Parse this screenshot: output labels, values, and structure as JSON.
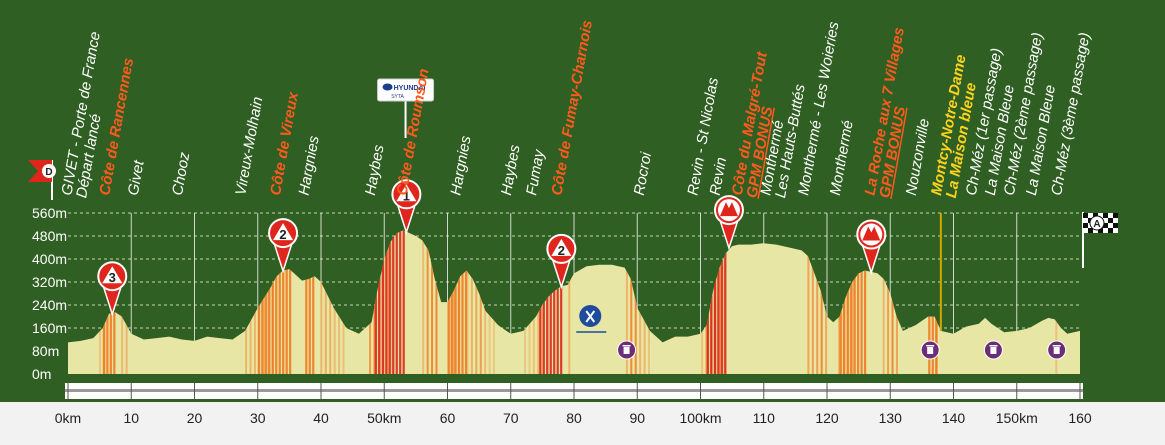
{
  "chart_data": {
    "type": "area",
    "title": "",
    "xlabel": "",
    "ylabel": "",
    "xlim": [
      0,
      160
    ],
    "ylim": [
      0,
      560
    ],
    "grid": true,
    "colors": {
      "background": "#2f5f22",
      "profile_fill": "#e8e6a4",
      "steep_stripe": "#f07a22",
      "very_steep_stripe": "#d9281e",
      "label_town": "#ffffff",
      "label_climb": "#ff5a1e",
      "label_sprint": "#ffd21e",
      "axis_band": "#ffffff"
    },
    "y_ticks": [
      {
        "value": 0,
        "label": "0m"
      },
      {
        "value": 80,
        "label": "80m"
      },
      {
        "value": 160,
        "label": "160m"
      },
      {
        "value": 240,
        "label": "240m"
      },
      {
        "value": 320,
        "label": "320m"
      },
      {
        "value": 400,
        "label": "400m"
      },
      {
        "value": 480,
        "label": "480m"
      },
      {
        "value": 560,
        "label": "560m"
      }
    ],
    "x_ticks": [
      {
        "value": 0,
        "label": "0km"
      },
      {
        "value": 10,
        "label": "10"
      },
      {
        "value": 20,
        "label": "20"
      },
      {
        "value": 30,
        "label": "30"
      },
      {
        "value": 40,
        "label": "40"
      },
      {
        "value": 50,
        "label": "50km"
      },
      {
        "value": 60,
        "label": "60"
      },
      {
        "value": 70,
        "label": "70"
      },
      {
        "value": 80,
        "label": "80"
      },
      {
        "value": 90,
        "label": "90"
      },
      {
        "value": 100,
        "label": "100km"
      },
      {
        "value": 110,
        "label": "110"
      },
      {
        "value": 120,
        "label": "120"
      },
      {
        "value": 130,
        "label": "130"
      },
      {
        "value": 140,
        "label": "140"
      },
      {
        "value": 150,
        "label": "150km"
      },
      {
        "value": 160,
        "label": "160"
      }
    ],
    "series": [
      {
        "x": [
          0,
          2,
          4,
          5.5,
          6.5,
          7.5,
          8.5,
          10,
          12,
          14,
          16,
          18,
          20,
          22,
          24,
          26,
          28,
          30,
          32,
          33,
          34,
          35,
          36,
          37,
          38,
          39,
          40,
          42,
          44,
          46,
          48,
          49,
          50,
          51,
          52,
          53,
          54,
          55,
          56,
          57,
          58,
          59,
          60,
          61,
          62,
          63,
          64,
          65,
          66,
          68,
          70,
          72,
          74,
          75,
          76,
          77,
          78,
          79,
          80,
          82,
          84,
          86,
          88,
          89,
          90,
          91,
          92,
          94,
          96,
          98,
          100,
          101,
          102,
          103,
          104,
          105,
          106,
          108,
          110,
          112,
          114,
          116,
          117,
          118,
          119,
          120,
          121,
          122,
          123,
          124,
          125,
          126,
          127,
          128,
          129,
          130,
          131,
          132,
          134,
          136,
          137,
          138,
          140,
          142,
          144,
          145,
          146,
          147,
          148,
          150,
          152,
          154,
          155,
          156,
          157,
          158,
          160
        ],
        "y": [
          110,
          115,
          125,
          160,
          210,
          215,
          200,
          140,
          120,
          125,
          130,
          120,
          115,
          130,
          125,
          120,
          150,
          230,
          300,
          340,
          360,
          365,
          345,
          325,
          330,
          340,
          320,
          230,
          160,
          140,
          180,
          300,
          400,
          460,
          490,
          500,
          490,
          480,
          465,
          430,
          330,
          250,
          250,
          290,
          340,
          360,
          330,
          280,
          220,
          170,
          140,
          150,
          200,
          240,
          270,
          290,
          305,
          310,
          350,
          375,
          380,
          380,
          370,
          330,
          230,
          190,
          150,
          110,
          130,
          130,
          140,
          170,
          290,
          370,
          420,
          445,
          450,
          450,
          455,
          450,
          440,
          430,
          410,
          350,
          290,
          200,
          180,
          200,
          270,
          320,
          350,
          360,
          355,
          350,
          330,
          280,
          200,
          150,
          170,
          200,
          200,
          150,
          140,
          165,
          175,
          195,
          175,
          160,
          145,
          150,
          160,
          185,
          195,
          190,
          160,
          140,
          150
        ]
      }
    ],
    "steep_sections": [
      {
        "from": 5.5,
        "to": 7.5,
        "grade": "steep"
      },
      {
        "from": 30,
        "to": 35,
        "grade": "steep"
      },
      {
        "from": 37.5,
        "to": 39,
        "grade": "steep"
      },
      {
        "from": 48.5,
        "to": 53,
        "grade": "very_steep"
      },
      {
        "from": 60,
        "to": 63,
        "grade": "steep"
      },
      {
        "from": 74.5,
        "to": 78,
        "grade": "very_steep"
      },
      {
        "from": 101,
        "to": 104,
        "grade": "very_steep"
      },
      {
        "from": 122,
        "to": 126,
        "grade": "steep"
      },
      {
        "from": 136,
        "to": 137.5,
        "grade": "steep"
      }
    ],
    "locations": [
      {
        "km": 0.5,
        "lines": [
          "GIVET - Porte de France",
          "Départ lancé"
        ],
        "style": "town"
      },
      {
        "km": 6.5,
        "lines": [
          "Côte de Rancennes"
        ],
        "style": "climb"
      },
      {
        "km": 11,
        "lines": [
          "Givet"
        ],
        "style": "town"
      },
      {
        "km": 18,
        "lines": [
          "Chooz"
        ],
        "style": "town"
      },
      {
        "km": 28,
        "lines": [
          "Vireux-Molhain"
        ],
        "style": "town"
      },
      {
        "km": 33.5,
        "lines": [
          "Côte de Vireux"
        ],
        "style": "climb"
      },
      {
        "km": 38,
        "lines": [
          "Hargnies"
        ],
        "style": "town"
      },
      {
        "km": 48.5,
        "lines": [
          "Haybes"
        ],
        "style": "town"
      },
      {
        "km": 53.5,
        "lines": [
          "Côte de Roumson"
        ],
        "style": "climb"
      },
      {
        "km": 62,
        "lines": [
          "Hargnies"
        ],
        "style": "town"
      },
      {
        "km": 70,
        "lines": [
          "Haybes"
        ],
        "style": "town"
      },
      {
        "km": 74,
        "lines": [
          "Fumay"
        ],
        "style": "town"
      },
      {
        "km": 78,
        "lines": [
          "Côte de Fumay-Charnois"
        ],
        "style": "climb"
      },
      {
        "km": 91,
        "lines": [
          "Rocroi"
        ],
        "style": "town"
      },
      {
        "km": 99.5,
        "lines": [
          "Revin - St Nicolas"
        ],
        "style": "town"
      },
      {
        "km": 103,
        "lines": [
          "Revin"
        ],
        "style": "town"
      },
      {
        "km": 106.5,
        "lines": [
          "Côte du Malgré-Tout",
          "GPM BONUS"
        ],
        "style": "climb"
      },
      {
        "km": 111,
        "lines": [
          "Monthermé",
          "Les Hauts-Buttés"
        ],
        "style": "town"
      },
      {
        "km": 117,
        "lines": [
          "Monthermé - Les Woieries"
        ],
        "style": "town"
      },
      {
        "km": 122,
        "lines": [
          "Monthermé"
        ],
        "style": "town"
      },
      {
        "km": 127.5,
        "lines": [
          "La Roche aux 7 Villages",
          "GPM BONUS"
        ],
        "style": "climb"
      },
      {
        "km": 134,
        "lines": [
          "Nouzonville"
        ],
        "style": "town"
      },
      {
        "km": 138,
        "lines": [
          "Montcy-Notre-Dame",
          "La Maison bleue"
        ],
        "style": "sprint"
      },
      {
        "km": 143.5,
        "lines": [
          "Ch-Méz (1er passage)"
        ],
        "style": "town"
      },
      {
        "km": 146.5,
        "lines": [
          "La Maison Bleue"
        ],
        "style": "town"
      },
      {
        "km": 149.5,
        "lines": [
          "Ch-Méz (2ème passage)"
        ],
        "style": "town"
      },
      {
        "km": 153,
        "lines": [
          "La Maison Bleue"
        ],
        "style": "town"
      },
      {
        "km": 157,
        "lines": [
          "Ch-Méz (3ème passage)"
        ],
        "style": "town"
      }
    ],
    "climb_markers": [
      {
        "km": 7,
        "alt": 215,
        "label": "3"
      },
      {
        "km": 34,
        "alt": 365,
        "label": "2"
      },
      {
        "km": 53.5,
        "alt": 500,
        "label": "1"
      },
      {
        "km": 78,
        "alt": 310,
        "label": "2"
      },
      {
        "km": 104.5,
        "alt": 445,
        "label": "HC"
      },
      {
        "km": 127,
        "alt": 360,
        "label": "HC"
      }
    ],
    "start_flag": {
      "km": 0,
      "label": "D"
    },
    "finish_flag": {
      "km": 160,
      "label": "A"
    },
    "sponsor": {
      "km": 54,
      "lines": [
        "HYUNDAI",
        "SYTA"
      ],
      "icon": "hyundai-sponsor-icon"
    },
    "feed_zone": {
      "km": 87,
      "alt": 160,
      "icon": "fork-knife-icon"
    },
    "waste_zones": [
      {
        "km": 91,
        "icon": "bin-icon"
      },
      {
        "km": 139,
        "icon": "bin-icon"
      },
      {
        "km": 149,
        "icon": "bin-icon"
      },
      {
        "km": 159,
        "icon": "bin-icon"
      }
    ],
    "sprint_line_km": 138
  }
}
